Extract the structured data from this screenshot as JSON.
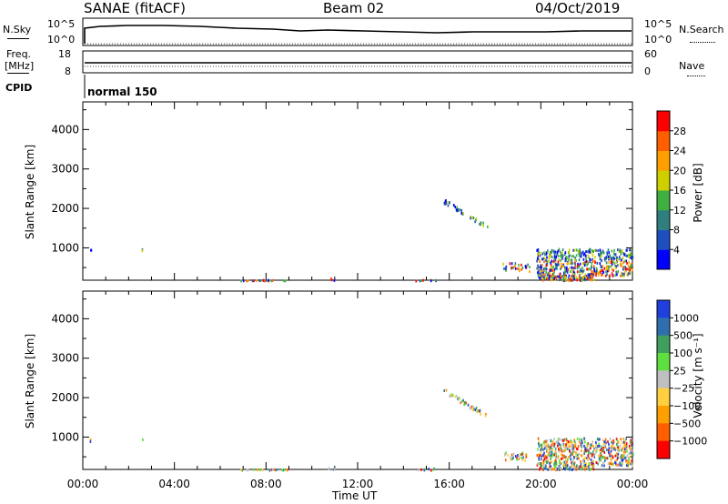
{
  "header": {
    "station": "SANAE (fitACF)",
    "beam": "Beam 02",
    "date": "04/Oct/2019"
  },
  "top_panel": {
    "left_label": "N.Sky",
    "right_label": "N.Search",
    "left_ticks": [
      "10^5",
      "10^0"
    ],
    "right_ticks": [
      "10^5",
      "10^0"
    ]
  },
  "freq_panel": {
    "left_label_line1": "Freq.",
    "left_label_line2": "[MHz]",
    "right_label": "Nave",
    "left_ticks": [
      "18",
      "8"
    ],
    "right_ticks": [
      "60",
      "0"
    ]
  },
  "cpid": {
    "label": "CPID",
    "value": "normal 150"
  },
  "x_axis": {
    "label": "Time UT",
    "ticks": [
      "00:00",
      "04:00",
      "08:00",
      "12:00",
      "16:00",
      "20:00",
      "00:00"
    ]
  },
  "chart_data": [
    {
      "type": "heatmap",
      "name": "power",
      "ylabel": "Slant Range [km]",
      "yticks": [
        "1000",
        "2000",
        "3000",
        "4000"
      ],
      "ylim": [
        180,
        4700
      ],
      "xlim": [
        0,
        24
      ],
      "colorbar": {
        "label": "Power [dB]",
        "ticks": [
          "4",
          "8",
          "12",
          "16",
          "20",
          "24",
          "28"
        ],
        "colors": [
          "#0000ff",
          "#1f4fbf",
          "#2f7f7f",
          "#3faf3f",
          "#cfcf00",
          "#ff9f00",
          "#ff5f00",
          "#ff0000"
        ]
      }
    },
    {
      "type": "heatmap",
      "name": "velocity",
      "ylabel": "Slant Range [km]",
      "yticks": [
        "1000",
        "2000",
        "3000",
        "4000"
      ],
      "ylim": [
        180,
        4700
      ],
      "xlim": [
        0,
        24
      ],
      "colorbar": {
        "label": "Velocity [m s⁻¹]",
        "ticks": [
          "1000",
          "500",
          "100",
          "25",
          "−25",
          "−100",
          "−500",
          "−1000"
        ],
        "colors": [
          "#1f3fdf",
          "#2f6faf",
          "#3f9f5f",
          "#5fdf3f",
          "#bfbfbf",
          "#ffcf3f",
          "#ff9f00",
          "#ff5f00",
          "#ff0000"
        ]
      }
    }
  ]
}
